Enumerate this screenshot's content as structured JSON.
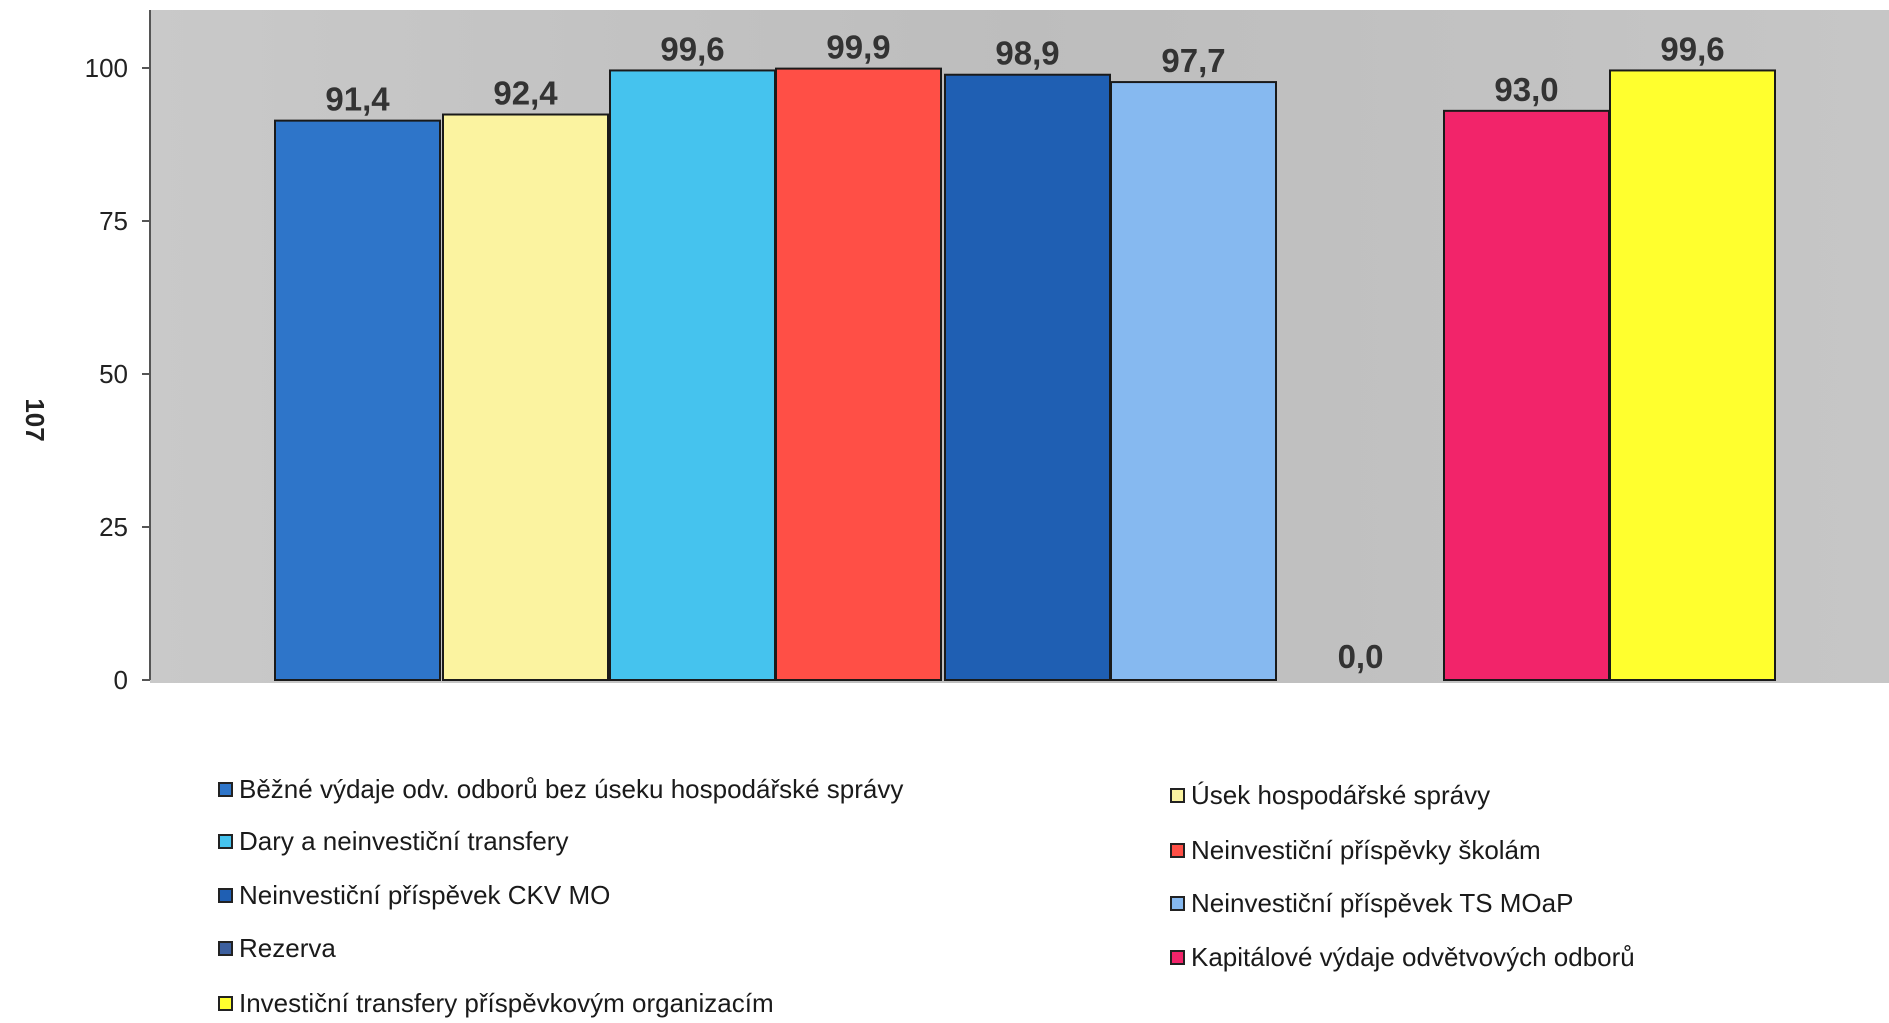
{
  "chart_data": {
    "type": "bar",
    "title": "",
    "xlabel": "",
    "ylabel": "",
    "ylim": [
      0,
      110
    ],
    "yticks": [
      0,
      25,
      50,
      75,
      100
    ],
    "ytick_labels": [
      "0",
      "25",
      "50",
      "75",
      "100"
    ],
    "legend_position": "bottom",
    "side_text": "107",
    "series": [
      {
        "name": "Běžné výdaje odv. odborů bez úseku hospodářské správy",
        "value": 91.4,
        "label": "91,4",
        "color": "#2e75c9",
        "label_color": "#333333"
      },
      {
        "name": "Úsek hospodářské správy",
        "value": 92.4,
        "label": "92,4",
        "color": "#fbf3a0",
        "label_color": "#333333"
      },
      {
        "name": "Dary a neinvestiční transfery",
        "value": 99.6,
        "label": "99,6",
        "color": "#45c3ee",
        "label_color": "#333333"
      },
      {
        "name": "Neinvestiční příspěvky školám",
        "value": 99.9,
        "label": "99,9",
        "color": "#ff4f46",
        "label_color": "#333333"
      },
      {
        "name": "Neinvestiční příspěvek CKV MO",
        "value": 98.9,
        "label": "98,9",
        "color": "#1f5fb3",
        "label_color": "#333333"
      },
      {
        "name": "Neinvestiční příspěvek TS MOaP",
        "value": 97.7,
        "label": "97,7",
        "color": "#86b9f0",
        "label_color": "#333333"
      },
      {
        "name": "Rezerva",
        "value": 0.0,
        "label": "0,0",
        "color": "#3c5f9e",
        "label_color": "#333333"
      },
      {
        "name": "Kapitálové výdaje odvětvových odborů",
        "value": 93.0,
        "label": "93,0",
        "color": "#f2246a",
        "label_color": "#333333"
      },
      {
        "name": "Investiční transfery příspěvkovým organizacím",
        "value": 99.6,
        "label": "99,6",
        "color": "#ffff2e",
        "label_color": "#3a3a00"
      }
    ]
  },
  "legend": {
    "items": [
      {
        "label": "Běžné výdaje odv. odborů bez úseku hospodářské správy",
        "color": "#2e75c9"
      },
      {
        "label": "Dary a neinvestiční transfery",
        "color": "#45c3ee"
      },
      {
        "label": "Neinvestiční příspěvek CKV MO",
        "color": "#1f5fb3"
      },
      {
        "label": "Rezerva",
        "color": "#3c5f9e"
      },
      {
        "label": "Investiční transfery příspěvkovým organizacím",
        "color": "#ffff2e"
      },
      {
        "label": "Úsek hospodářské správy",
        "color": "#fbf3a0"
      },
      {
        "label": "Neinvestiční příspěvky školám",
        "color": "#ff4f46"
      },
      {
        "label": "Neinvestiční příspěvek TS MOaP",
        "color": "#86b9f0"
      },
      {
        "label": "Kapitálové výdaje odvětvových odborů",
        "color": "#f2246a"
      }
    ]
  }
}
